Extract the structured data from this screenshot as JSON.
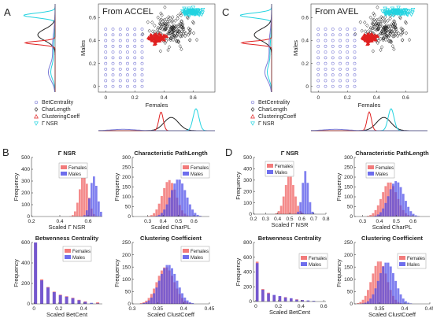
{
  "colors": {
    "bet": "#7b7bd6",
    "char": "#222222",
    "clust": "#e02020",
    "nsr": "#22d3e0",
    "females": "#ef5a5a",
    "males": "#4a4ae8",
    "overlap": "#7a2aa8"
  },
  "panels": {
    "A": {
      "letter": "A",
      "title": "From ACCEL"
    },
    "B": {
      "letter": "B"
    },
    "C": {
      "letter": "C",
      "title": "From AVEL"
    },
    "D": {
      "letter": "D"
    }
  },
  "scatter_legend": [
    "BetCentrality",
    "CharLength",
    "ClusteringCoeff",
    "Γ NSR"
  ],
  "chart_data": [
    {
      "id": "A-scatter",
      "type": "scatter",
      "title": "From ACCEL",
      "xlabel": "Females",
      "ylabel": "Males",
      "xlim": [
        -0.05,
        0.75
      ],
      "ylim": [
        -0.05,
        0.72
      ],
      "xticks": [
        0,
        0.2,
        0.4,
        0.6
      ],
      "yticks": [
        0,
        0.2,
        0.4,
        0.6
      ],
      "series": [
        {
          "name": "BetCentrality",
          "marker": "circle",
          "grid": {
            "x": [
              0,
              0.25
            ],
            "y": [
              0,
              0.5
            ],
            "step": 0.05
          }
        },
        {
          "name": "CharLength",
          "marker": "diamond",
          "cluster": {
            "cx": 0.45,
            "cy": 0.5,
            "rx": 0.15,
            "ry": 0.15,
            "n": 170
          }
        },
        {
          "name": "ClusteringCoeff",
          "marker": "triangle",
          "cluster": {
            "cx": 0.35,
            "cy": 0.42,
            "rx": 0.06,
            "ry": 0.05,
            "n": 60
          }
        },
        {
          "name": "Γ NSR",
          "marker": "triangle-down",
          "cluster": {
            "cx": 0.6,
            "cy": 0.65,
            "rx": 0.08,
            "ry": 0.03,
            "n": 80
          }
        }
      ],
      "marginal_y_peaks": [
        0.62,
        0.45,
        0.38,
        0.12
      ],
      "marginal_x_peaks": [
        0.45,
        0.62,
        0.38
      ]
    },
    {
      "id": "C-scatter",
      "type": "scatter",
      "title": "From AVEL",
      "xlabel": "Females",
      "ylabel": "Males",
      "xlim": [
        -0.05,
        0.75
      ],
      "ylim": [
        -0.05,
        0.72
      ],
      "xticks": [
        0,
        0.2,
        0.4,
        0.6
      ],
      "yticks": [
        0,
        0.2,
        0.4,
        0.6
      ],
      "series": [
        {
          "name": "BetCentrality",
          "marker": "circle",
          "grid": {
            "x": [
              0,
              0.25
            ],
            "y": [
              0,
              0.5
            ],
            "step": 0.05
          }
        },
        {
          "name": "CharLength",
          "marker": "diamond",
          "cluster": {
            "cx": 0.45,
            "cy": 0.5,
            "rx": 0.15,
            "ry": 0.15,
            "n": 170
          }
        },
        {
          "name": "ClusteringCoeff",
          "marker": "triangle",
          "cluster": {
            "cx": 0.35,
            "cy": 0.42,
            "rx": 0.05,
            "ry": 0.05,
            "n": 60
          }
        },
        {
          "name": "Γ NSR",
          "marker": "triangle-down",
          "cluster": {
            "cx": 0.55,
            "cy": 0.65,
            "rx": 0.12,
            "ry": 0.03,
            "n": 80
          }
        }
      ],
      "marginal_y_peaks": [
        0.62,
        0.45,
        0.38,
        0.12
      ],
      "marginal_x_peaks": [
        0.45,
        0.5,
        0.35
      ]
    },
    {
      "id": "B-nsr",
      "type": "bar",
      "title": "Γ NSR",
      "xlabel": "Scaled Γ NSR",
      "ylabel": "Frequency",
      "xlim": [
        0.2,
        0.7
      ],
      "ylim": [
        0,
        500
      ],
      "xticks": [
        0.2,
        0.4,
        0.6
      ],
      "yticks": [
        0,
        100,
        200,
        300,
        400,
        500
      ],
      "legend": [
        "Females",
        "Males"
      ],
      "series": [
        {
          "name": "Females",
          "mu": 0.57,
          "sd": 0.03,
          "peak": 360
        },
        {
          "name": "Males",
          "mu": 0.64,
          "sd": 0.025,
          "peak": 340
        }
      ]
    },
    {
      "id": "B-charpl",
      "type": "bar",
      "title": "Characteristic PathLength",
      "xlabel": "Scaled CharPL",
      "ylabel": "Frequency",
      "xlim": [
        0.2,
        0.7
      ],
      "ylim": [
        0,
        300
      ],
      "xticks": [
        0.3,
        0.4,
        0.5,
        0.6
      ],
      "yticks": [
        0,
        50,
        100,
        150,
        200,
        250,
        300
      ],
      "legend": [
        "Females",
        "Males"
      ],
      "series": [
        {
          "name": "Females",
          "mu": 0.44,
          "sd": 0.045,
          "peak": 185
        },
        {
          "name": "Males",
          "mu": 0.5,
          "sd": 0.05,
          "peak": 190
        }
      ]
    },
    {
      "id": "B-betcent",
      "type": "bar",
      "title": "Betwenness Centrality",
      "xlabel": "Scaled BetCent",
      "ylabel": "Frequency",
      "xlim": [
        -0.02,
        0.55
      ],
      "ylim": [
        0,
        600
      ],
      "xticks": [
        0,
        0.2,
        0.4
      ],
      "yticks": [
        0,
        200,
        400,
        600
      ],
      "legend": [
        "Females",
        "Males"
      ],
      "bins": [
        0,
        0.05,
        0.1,
        0.15,
        0.2,
        0.25,
        0.3,
        0.35,
        0.4,
        0.45,
        0.5
      ],
      "series": [
        {
          "name": "Females",
          "values": [
            600,
            240,
            165,
            120,
            90,
            75,
            60,
            40,
            25,
            0,
            15
          ]
        },
        {
          "name": "Males",
          "values": [
            600,
            230,
            160,
            115,
            85,
            70,
            55,
            35,
            20,
            10,
            5
          ]
        }
      ]
    },
    {
      "id": "B-clust",
      "type": "bar",
      "title": "Clustering Coefficient",
      "xlabel": "Scaled ClustCoeff",
      "ylabel": "Frequency",
      "xlim": [
        0.3,
        0.45
      ],
      "ylim": [
        0,
        250
      ],
      "xticks": [
        0.3,
        0.35,
        0.4,
        0.45
      ],
      "yticks": [
        0,
        50,
        100,
        150,
        200,
        250
      ],
      "legend": [
        "Females",
        "Males"
      ],
      "series": [
        {
          "name": "Females",
          "mu": 0.365,
          "sd": 0.017,
          "peak": 150
        },
        {
          "name": "Males",
          "mu": 0.37,
          "sd": 0.017,
          "peak": 160
        }
      ]
    },
    {
      "id": "D-nsr",
      "type": "bar",
      "title": "Γ NSR",
      "xlabel": "Scaled Γ NSR",
      "ylabel": "Frequency",
      "xlim": [
        0.2,
        0.8
      ],
      "ylim": [
        0,
        500
      ],
      "xticks": [
        0.2,
        0.3,
        0.4,
        0.5,
        0.6,
        0.7,
        0.8
      ],
      "yticks": [
        0,
        100,
        200,
        300,
        400,
        500
      ],
      "legend": [
        "Females",
        "Males"
      ],
      "series": [
        {
          "name": "Females",
          "mu": 0.5,
          "sd": 0.04,
          "peak": 340
        },
        {
          "name": "Males",
          "mu": 0.63,
          "sd": 0.025,
          "peak": 380
        }
      ]
    },
    {
      "id": "D-charpl",
      "type": "bar",
      "title": "Characteristic PathLength",
      "xlabel": "Scaled CharPL",
      "ylabel": "Frequency",
      "xlim": [
        0.25,
        0.7
      ],
      "ylim": [
        0,
        300
      ],
      "xticks": [
        0.3,
        0.4,
        0.5,
        0.6
      ],
      "yticks": [
        0,
        50,
        100,
        150,
        200,
        250,
        300
      ],
      "legend": [
        "Females",
        "Males"
      ],
      "series": [
        {
          "name": "Females",
          "mu": 0.46,
          "sd": 0.045,
          "peak": 175
        },
        {
          "name": "Males",
          "mu": 0.5,
          "sd": 0.045,
          "peak": 180
        }
      ]
    },
    {
      "id": "D-betcent",
      "type": "bar",
      "title": "Betwenness Centrality",
      "xlabel": "Scaled BetCent",
      "ylabel": "Frequency",
      "xlim": [
        -0.02,
        0.62
      ],
      "ylim": [
        0,
        800
      ],
      "xticks": [
        0,
        0.2,
        0.4,
        0.6
      ],
      "yticks": [
        0,
        200,
        400,
        600,
        800
      ],
      "legend": [
        "Females",
        "Males"
      ],
      "bins": [
        0,
        0.05,
        0.1,
        0.15,
        0.2,
        0.25,
        0.3,
        0.35,
        0.4,
        0.45,
        0.5
      ],
      "series": [
        {
          "name": "Females",
          "values": [
            540,
            170,
            120,
            85,
            70,
            60,
            40,
            30,
            20,
            10,
            5
          ]
        },
        {
          "name": "Males",
          "values": [
            520,
            160,
            110,
            90,
            75,
            55,
            45,
            25,
            20,
            15,
            10
          ]
        }
      ]
    },
    {
      "id": "D-clust",
      "type": "bar",
      "title": "Clustering Coefficient",
      "xlabel": "Scaled ClustCoeff",
      "ylabel": "Frequency",
      "xlim": [
        0.3,
        0.45
      ],
      "ylim": [
        0,
        250
      ],
      "xticks": [
        0.35,
        0.4,
        0.45
      ],
      "yticks": [
        0,
        50,
        100,
        150,
        200,
        250
      ],
      "legend": [
        "Females",
        "Males"
      ],
      "series": [
        {
          "name": "Females",
          "mu": 0.35,
          "sd": 0.015,
          "peak": 175
        },
        {
          "name": "Males",
          "mu": 0.365,
          "sd": 0.016,
          "peak": 170
        }
      ]
    }
  ]
}
